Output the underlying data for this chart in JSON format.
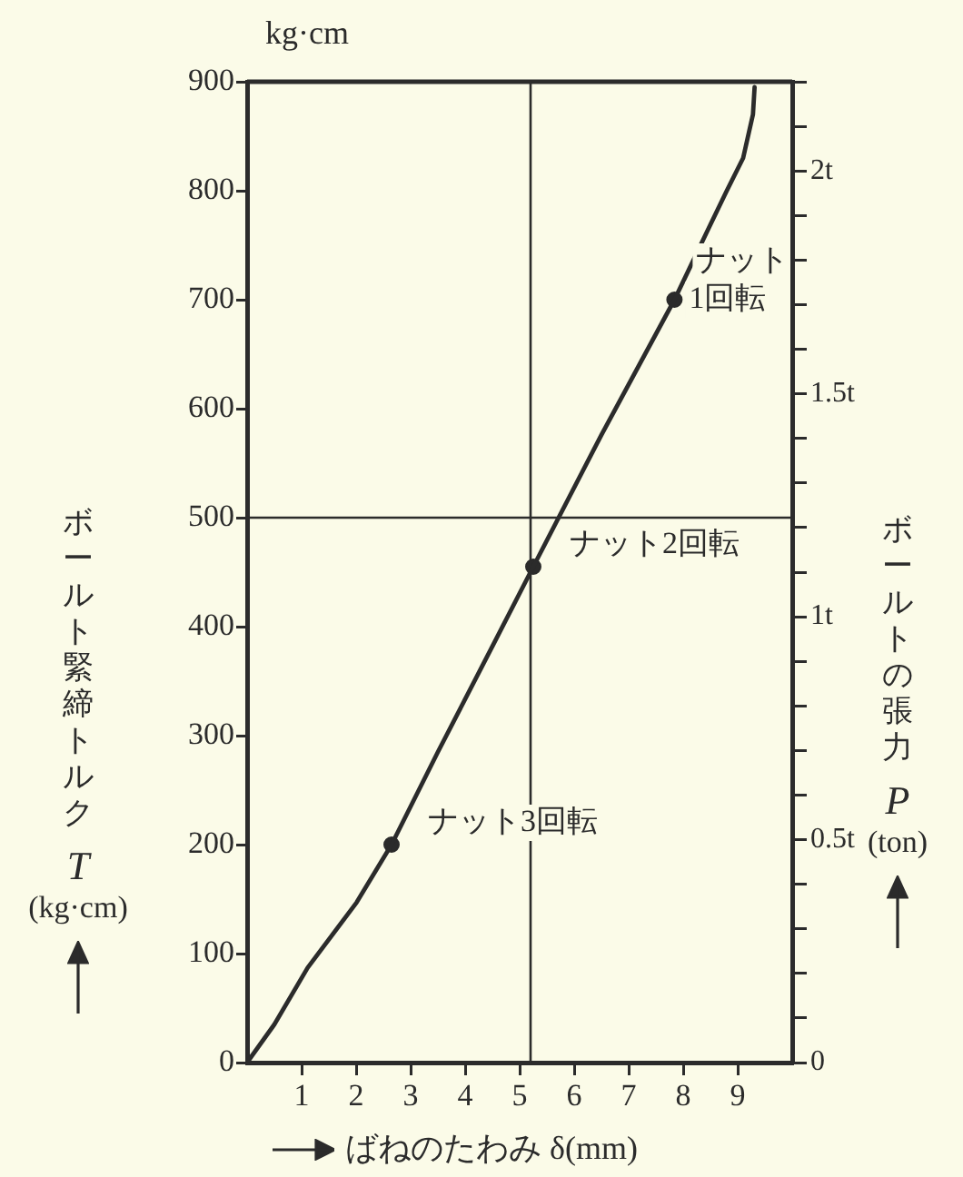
{
  "chart_data": {
    "type": "line",
    "xlabel": "ばねのたわみ δ(mm)",
    "ylabel": "ボールト緊締トルク\nT\n(kg·cm)",
    "y2label": "ボールトの張力\nP\n(ton)",
    "xlim": [
      0,
      10
    ],
    "xticks": [
      1,
      2,
      3,
      4,
      5,
      6,
      7,
      8,
      9
    ],
    "ylim": [
      0,
      900
    ],
    "yticks": [
      0,
      100,
      200,
      300,
      400,
      500,
      600,
      700,
      800,
      900
    ],
    "y2lim": [
      0,
      2.2
    ],
    "y2ticks": [
      {
        "value": 0,
        "label": "0"
      },
      {
        "value": 0.1,
        "label": null
      },
      {
        "value": 0.2,
        "label": null
      },
      {
        "value": 0.3,
        "label": null
      },
      {
        "value": 0.4,
        "label": null
      },
      {
        "value": 0.5,
        "label": "0.5t"
      },
      {
        "value": 0.6,
        "label": null
      },
      {
        "value": 0.7,
        "label": null
      },
      {
        "value": 0.8,
        "label": null
      },
      {
        "value": 0.9,
        "label": null
      },
      {
        "value": 1,
        "label": "1t"
      },
      {
        "value": 1.1,
        "label": null
      },
      {
        "value": 1.2,
        "label": null
      },
      {
        "value": 1.3,
        "label": null
      },
      {
        "value": 1.4,
        "label": null
      },
      {
        "value": 1.5,
        "label": "1.5t"
      },
      {
        "value": 1.6,
        "label": null
      },
      {
        "value": 1.7,
        "label": null
      },
      {
        "value": 1.8,
        "label": null
      },
      {
        "value": 1.9,
        "label": null
      },
      {
        "value": 2,
        "label": "2t"
      },
      {
        "value": 2.1,
        "label": null
      },
      {
        "value": 2.2,
        "label": null
      }
    ],
    "grid": false,
    "legend": false,
    "series": [
      {
        "color": "#2b2b2b",
        "marker": "none",
        "x": [
          0,
          0.5,
          1.11,
          2.01,
          2.65,
          3.5,
          4.5,
          5.25,
          6.5,
          7.84,
          8.5,
          8.8,
          9.1,
          9.28,
          9.31
        ],
        "values": [
          0,
          35,
          87,
          147,
          200,
          285,
          382,
          455,
          576,
          700,
          769,
          800,
          830,
          870,
          895
        ]
      },
      {
        "type": "scatter",
        "color": "#2b2b2b",
        "marker": "circle",
        "x": [
          2.65,
          5.25,
          7.84
        ],
        "values": [
          200,
          455,
          700
        ]
      }
    ],
    "ref_lines": [
      {
        "axis": "x",
        "value": 5.2,
        "color": "#2b2b2b"
      },
      {
        "axis": "y",
        "value": 500,
        "color": "#2b2b2b"
      }
    ],
    "annotations": [
      "kg·cm",
      {
        "text": "ナット3回転",
        "x": 2.65,
        "y": 200
      },
      {
        "text": "ナット2回転",
        "x": 5.25,
        "y": 455
      },
      {
        "text": "ナット\n1回転",
        "x": 7.84,
        "y": 700
      }
    ]
  }
}
